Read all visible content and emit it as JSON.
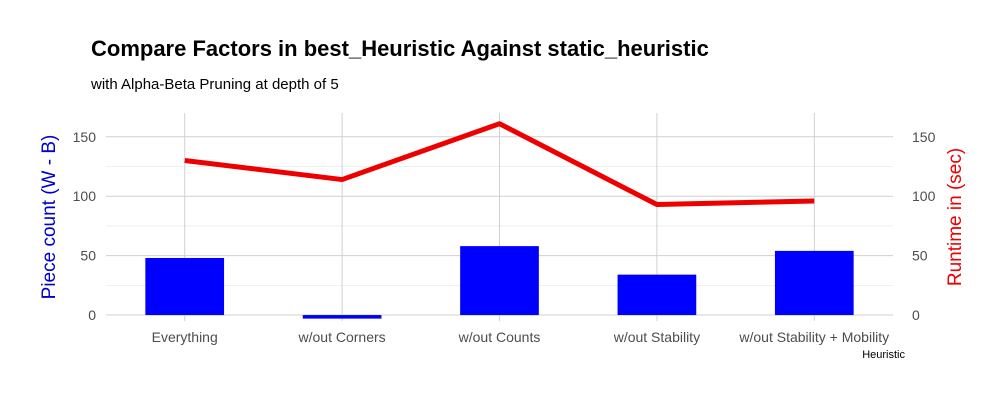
{
  "chart_data": {
    "type": "bar",
    "title": "Compare Factors in best_Heuristic Against static_heuristic",
    "subtitle": "with Alpha-Beta Pruning at depth of 5",
    "xlabel": "Heuristic",
    "ylabel": "Piece count (W - B)",
    "y2label": "Runtime in (sec)",
    "categories": [
      "Everything",
      "w/out Corners",
      "w/out Counts",
      "w/out Stability",
      "w/out Stability + Mobility"
    ],
    "ylim": [
      -5,
      170
    ],
    "yticks": [
      0,
      50,
      100,
      150
    ],
    "y2ticks": [
      0,
      50,
      100,
      150
    ],
    "grid": true,
    "series": [
      {
        "type": "bar",
        "color": "#0000FF",
        "values": [
          48,
          -3,
          58,
          34,
          54
        ]
      },
      {
        "type": "line",
        "color": "#EE0000",
        "values": [
          130,
          114,
          161,
          93,
          96
        ]
      }
    ],
    "ylabel_color": "#0000CC",
    "y2label_color": "#EE0000"
  }
}
